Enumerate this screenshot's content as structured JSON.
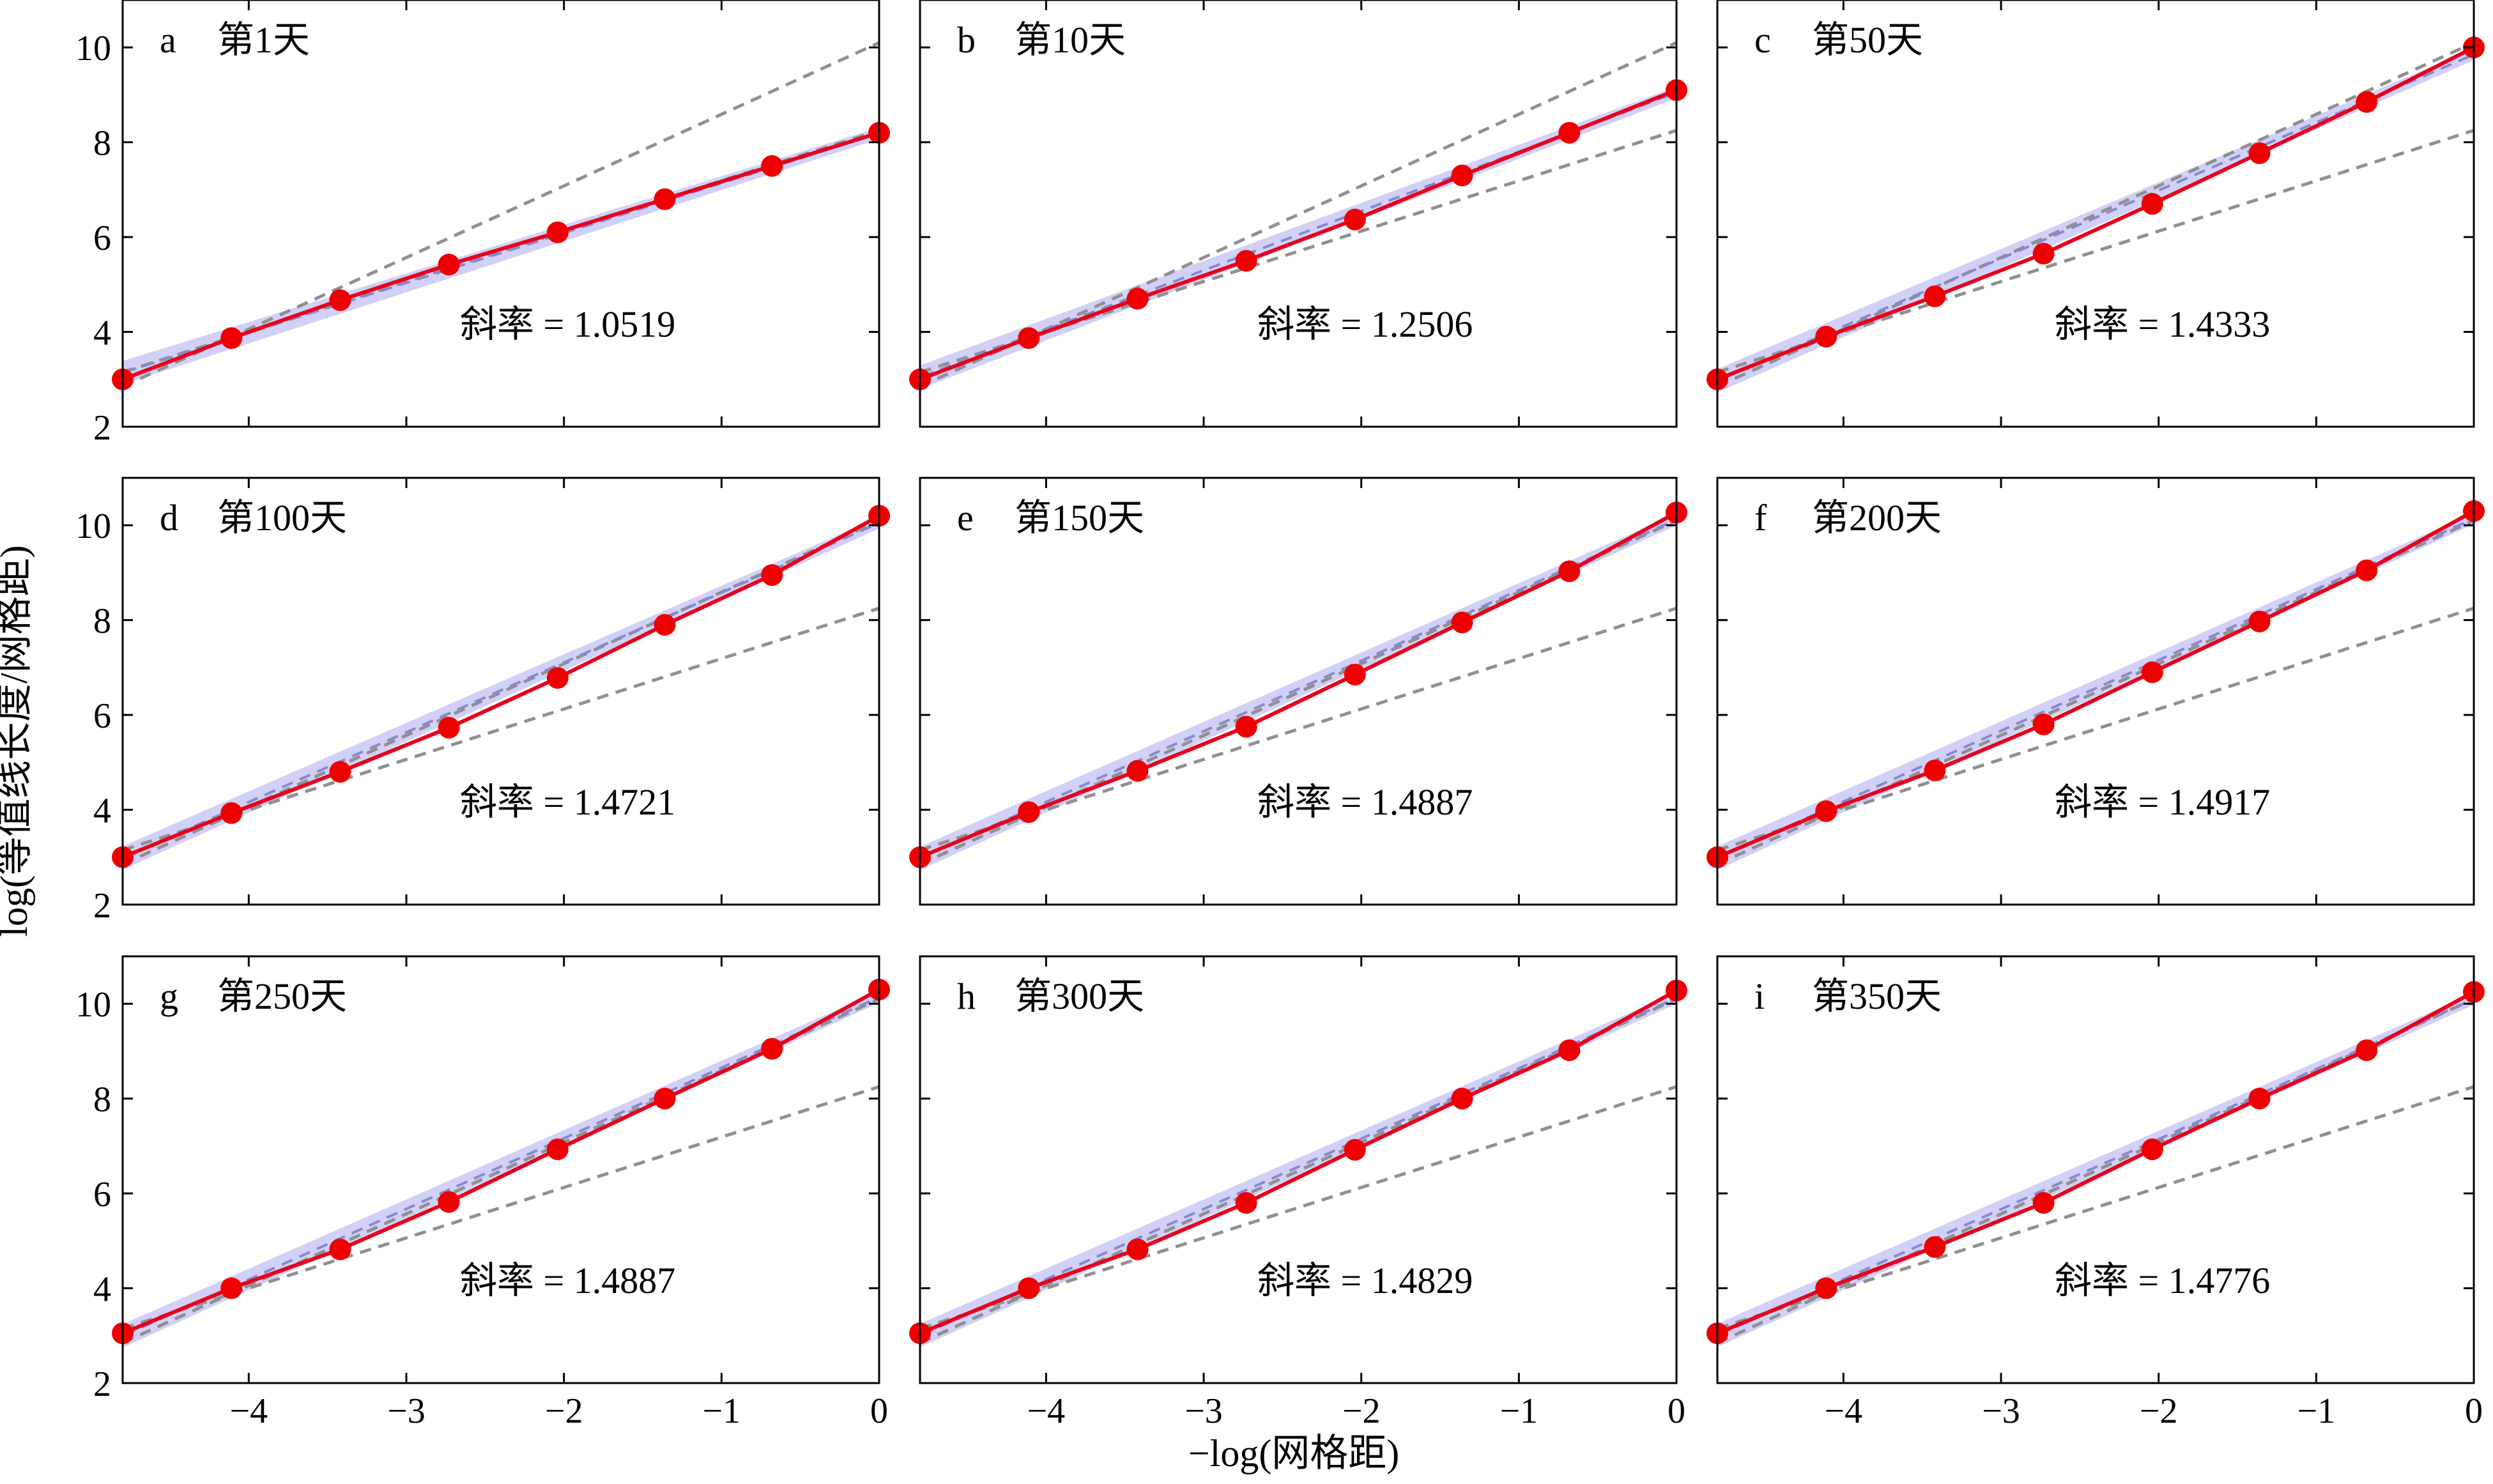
{
  "figure": {
    "ylabel": "log(等值线长度/网格距)",
    "xlabel": "−log(网格距)"
  },
  "colors": {
    "data_line": "#e8001c",
    "marker": "#ee0000",
    "confidence_band": "#9999ee",
    "reference_line": "#909090",
    "fit_line": "#8888cc"
  },
  "chart_data": [
    {
      "type": "line",
      "letter": "a",
      "title": "第1天",
      "slope_text": "斜率 = 1.0519",
      "x": [
        -4.8,
        -4.11,
        -3.42,
        -2.73,
        -2.04,
        -1.36,
        -0.68,
        0
      ],
      "y": [
        3.0,
        3.87,
        4.67,
        5.42,
        6.1,
        6.8,
        7.5,
        8.2
      ],
      "reference_lines": [
        {
          "x": [
            -4.8,
            0
          ],
          "y": [
            2.85,
            10.1
          ]
        },
        {
          "x": [
            -4.8,
            0
          ],
          "y": [
            3.15,
            8.25
          ]
        }
      ],
      "fit": {
        "slope": 1.0519,
        "intercept": 8.19
      },
      "xlim": [
        -4.8,
        0
      ],
      "ylim": [
        2,
        11
      ],
      "xticks": [
        -4,
        -3,
        -2,
        -1,
        0
      ],
      "yticks": [
        2,
        4,
        6,
        8,
        10
      ]
    },
    {
      "type": "line",
      "letter": "b",
      "title": "第10天",
      "slope_text": "斜率 = 1.2506",
      "x": [
        -4.8,
        -4.11,
        -3.42,
        -2.73,
        -2.04,
        -1.36,
        -0.68,
        0
      ],
      "y": [
        3.0,
        3.87,
        4.7,
        5.5,
        6.37,
        7.3,
        8.2,
        9.1
      ],
      "reference_lines": [
        {
          "x": [
            -4.8,
            0
          ],
          "y": [
            2.85,
            10.1
          ]
        },
        {
          "x": [
            -4.8,
            0
          ],
          "y": [
            3.15,
            8.25
          ]
        }
      ],
      "fit": {
        "slope": 1.2506,
        "intercept": 9.05
      },
      "xlim": [
        -4.8,
        0
      ],
      "ylim": [
        2,
        11
      ],
      "xticks": [
        -4,
        -3,
        -2,
        -1,
        0
      ],
      "yticks": [
        2,
        4,
        6,
        8,
        10
      ]
    },
    {
      "type": "line",
      "letter": "c",
      "title": "第50天",
      "slope_text": "斜率 = 1.4333",
      "x": [
        -4.8,
        -4.11,
        -3.42,
        -2.73,
        -2.04,
        -1.36,
        -0.68,
        0
      ],
      "y": [
        3.0,
        3.9,
        4.75,
        5.65,
        6.7,
        7.77,
        8.85,
        10.0
      ],
      "reference_lines": [
        {
          "x": [
            -4.8,
            0
          ],
          "y": [
            2.85,
            10.1
          ]
        },
        {
          "x": [
            -4.8,
            0
          ],
          "y": [
            3.15,
            8.25
          ]
        }
      ],
      "fit": {
        "slope": 1.4333,
        "intercept": 9.85
      },
      "xlim": [
        -4.8,
        0
      ],
      "ylim": [
        2,
        11
      ],
      "xticks": [
        -4,
        -3,
        -2,
        -1,
        0
      ],
      "yticks": [
        2,
        4,
        6,
        8,
        10
      ]
    },
    {
      "type": "line",
      "letter": "d",
      "title": "第100天",
      "slope_text": "斜率 = 1.4721",
      "x": [
        -4.8,
        -4.11,
        -3.42,
        -2.73,
        -2.04,
        -1.36,
        -0.68,
        0
      ],
      "y": [
        3.0,
        3.93,
        4.8,
        5.73,
        6.78,
        7.9,
        8.95,
        10.2
      ],
      "reference_lines": [
        {
          "x": [
            -4.8,
            0
          ],
          "y": [
            2.85,
            10.1
          ]
        },
        {
          "x": [
            -4.8,
            0
          ],
          "y": [
            3.15,
            8.25
          ]
        }
      ],
      "fit": {
        "slope": 1.4721,
        "intercept": 10.05
      },
      "xlim": [
        -4.8,
        0
      ],
      "ylim": [
        2,
        11
      ],
      "xticks": [
        -4,
        -3,
        -2,
        -1,
        0
      ],
      "yticks": [
        2,
        4,
        6,
        8,
        10
      ]
    },
    {
      "type": "line",
      "letter": "e",
      "title": "第150天",
      "slope_text": "斜率 = 1.4887",
      "x": [
        -4.8,
        -4.11,
        -3.42,
        -2.73,
        -2.04,
        -1.36,
        -0.68,
        0
      ],
      "y": [
        3.0,
        3.95,
        4.82,
        5.75,
        6.85,
        7.95,
        9.03,
        10.27
      ],
      "reference_lines": [
        {
          "x": [
            -4.8,
            0
          ],
          "y": [
            2.85,
            10.1
          ]
        },
        {
          "x": [
            -4.8,
            0
          ],
          "y": [
            3.15,
            8.25
          ]
        }
      ],
      "fit": {
        "slope": 1.4887,
        "intercept": 10.12
      },
      "xlim": [
        -4.8,
        0
      ],
      "ylim": [
        2,
        11
      ],
      "xticks": [
        -4,
        -3,
        -2,
        -1,
        0
      ],
      "yticks": [
        2,
        4,
        6,
        8,
        10
      ]
    },
    {
      "type": "line",
      "letter": "f",
      "title": "第200天",
      "slope_text": "斜率 = 1.4917",
      "x": [
        -4.8,
        -4.11,
        -3.42,
        -2.73,
        -2.04,
        -1.36,
        -0.68,
        0
      ],
      "y": [
        3.0,
        3.97,
        4.83,
        5.8,
        6.9,
        7.97,
        9.05,
        10.3
      ],
      "reference_lines": [
        {
          "x": [
            -4.8,
            0
          ],
          "y": [
            2.85,
            10.1
          ]
        },
        {
          "x": [
            -4.8,
            0
          ],
          "y": [
            3.15,
            8.25
          ]
        }
      ],
      "fit": {
        "slope": 1.4917,
        "intercept": 10.14
      },
      "xlim": [
        -4.8,
        0
      ],
      "ylim": [
        2,
        11
      ],
      "xticks": [
        -4,
        -3,
        -2,
        -1,
        0
      ],
      "yticks": [
        2,
        4,
        6,
        8,
        10
      ]
    },
    {
      "type": "line",
      "letter": "g",
      "title": "第250天",
      "slope_text": "斜率 = 1.4887",
      "x": [
        -4.8,
        -4.11,
        -3.42,
        -2.73,
        -2.04,
        -1.36,
        -0.68,
        0
      ],
      "y": [
        3.05,
        4.0,
        4.82,
        5.82,
        6.93,
        8.0,
        9.05,
        10.3
      ],
      "reference_lines": [
        {
          "x": [
            -4.8,
            0
          ],
          "y": [
            2.85,
            10.1
          ]
        },
        {
          "x": [
            -4.8,
            0
          ],
          "y": [
            3.15,
            8.25
          ]
        }
      ],
      "fit": {
        "slope": 1.4887,
        "intercept": 10.14
      },
      "xlim": [
        -4.8,
        0
      ],
      "ylim": [
        2,
        11
      ],
      "xticks": [
        -4,
        -3,
        -2,
        -1,
        0
      ],
      "yticks": [
        2,
        4,
        6,
        8,
        10
      ]
    },
    {
      "type": "line",
      "letter": "h",
      "title": "第300天",
      "slope_text": "斜率 = 1.4829",
      "x": [
        -4.8,
        -4.11,
        -3.42,
        -2.73,
        -2.04,
        -1.36,
        -0.68,
        0
      ],
      "y": [
        3.05,
        4.0,
        4.82,
        5.8,
        6.92,
        8.0,
        9.02,
        10.28
      ],
      "reference_lines": [
        {
          "x": [
            -4.8,
            0
          ],
          "y": [
            2.85,
            10.1
          ]
        },
        {
          "x": [
            -4.8,
            0
          ],
          "y": [
            3.15,
            8.25
          ]
        }
      ],
      "fit": {
        "slope": 1.4829,
        "intercept": 10.12
      },
      "xlim": [
        -4.8,
        0
      ],
      "ylim": [
        2,
        11
      ],
      "xticks": [
        -4,
        -3,
        -2,
        -1,
        0
      ],
      "yticks": [
        2,
        4,
        6,
        8,
        10
      ]
    },
    {
      "type": "line",
      "letter": "i",
      "title": "第350天",
      "slope_text": "斜率 = 1.4776",
      "x": [
        -4.8,
        -4.11,
        -3.42,
        -2.73,
        -2.04,
        -1.36,
        -0.68,
        0
      ],
      "y": [
        3.05,
        4.0,
        4.87,
        5.8,
        6.93,
        8.0,
        9.02,
        10.25
      ],
      "reference_lines": [
        {
          "x": [
            -4.8,
            0
          ],
          "y": [
            2.85,
            10.1
          ]
        },
        {
          "x": [
            -4.8,
            0
          ],
          "y": [
            3.15,
            8.25
          ]
        }
      ],
      "fit": {
        "slope": 1.4776,
        "intercept": 10.1
      },
      "xlim": [
        -4.8,
        0
      ],
      "ylim": [
        2,
        11
      ],
      "xticks": [
        -4,
        -3,
        -2,
        -1,
        0
      ],
      "yticks": [
        2,
        4,
        6,
        8,
        10
      ]
    }
  ]
}
